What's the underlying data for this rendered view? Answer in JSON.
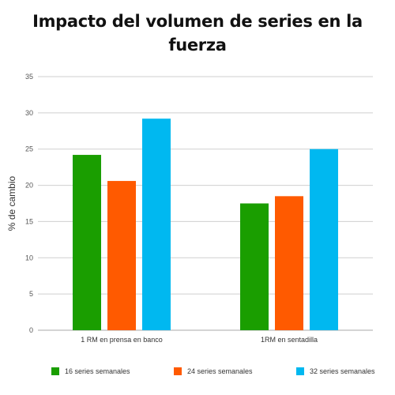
{
  "chart_data": {
    "type": "bar",
    "title": "Impacto del volumen de series en la fuerza",
    "xlabel": "",
    "ylabel": "% de cambio",
    "categories": [
      "1 RM en prensa en banco",
      "1RM en sentadilla"
    ],
    "series": [
      {
        "name": "16 series semanales",
        "color": "#1a9e00",
        "values": [
          24.2,
          17.5
        ]
      },
      {
        "name": "24 series semanales",
        "color": "#ff5a00",
        "values": [
          20.6,
          18.5
        ]
      },
      {
        "name": "32 series semanales",
        "color": "#00b8f0",
        "values": [
          29.2,
          25.0
        ]
      }
    ],
    "ylim": [
      0,
      35
    ],
    "yticks": [
      0,
      5,
      10,
      15,
      20,
      25,
      30,
      35
    ],
    "grid": true,
    "legend_position": "bottom"
  }
}
